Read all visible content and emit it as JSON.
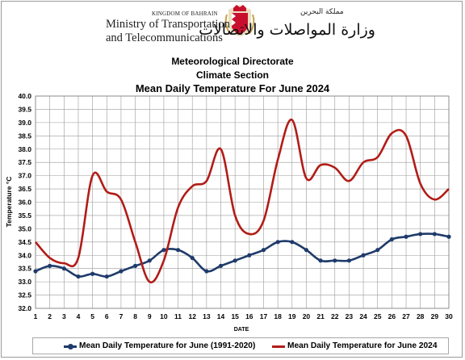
{
  "header": {
    "kingdom": "KINGDOM OF BAHRAIN",
    "ministry_line1": "Ministry of Transportation",
    "ministry_line2": "and Telecommunications",
    "arabic_kingdom": "مملكة البحرين",
    "arabic_ministry": "وزارة المواصلات والاتصالات"
  },
  "titles": {
    "line1": "Meteorological Directorate",
    "line2": "Climate Section",
    "line3": "Mean Daily Temperature For June 2024"
  },
  "colors": {
    "series_normal": "#1f3b6b",
    "series_2024": "#b21c17",
    "grid": "#9a9a9a",
    "logo_red": "#c8102e",
    "logo_gold": "#c9a24a"
  },
  "chart_data": {
    "type": "line",
    "title": "Mean Daily Temperature For June 2024",
    "xlabel": "DATE",
    "ylabel": "Temperature °C",
    "x": [
      1,
      2,
      3,
      4,
      5,
      6,
      7,
      8,
      9,
      10,
      11,
      12,
      13,
      14,
      15,
      16,
      17,
      18,
      19,
      20,
      21,
      22,
      23,
      24,
      25,
      26,
      27,
      28,
      29,
      30
    ],
    "ylim": [
      32.0,
      40.0
    ],
    "yticks": [
      "32.0",
      "32.5",
      "33.0",
      "33.5",
      "34.0",
      "34.5",
      "35.0",
      "35.5",
      "36.0",
      "36.5",
      "37.0",
      "37.5",
      "38.0",
      "38.5",
      "39.0",
      "39.5",
      "40.0"
    ],
    "grid": true,
    "legend_position": "bottom",
    "series": [
      {
        "name": "Mean Daily Temperature for June (1991-2020)",
        "values": [
          33.4,
          33.6,
          33.5,
          33.2,
          33.3,
          33.2,
          33.4,
          33.6,
          33.8,
          34.2,
          34.2,
          33.9,
          33.4,
          33.6,
          33.8,
          34.0,
          34.2,
          34.5,
          34.5,
          34.2,
          33.8,
          33.8,
          33.8,
          34.0,
          34.2,
          34.6,
          34.7,
          34.8,
          34.8,
          34.7
        ]
      },
      {
        "name": "Mean Daily Temperature for June 2024",
        "values": [
          34.5,
          33.9,
          33.7,
          33.9,
          37.0,
          36.4,
          36.1,
          34.5,
          33.0,
          33.8,
          35.8,
          36.6,
          36.8,
          38.0,
          35.5,
          34.8,
          35.3,
          37.6,
          39.1,
          36.9,
          37.4,
          37.3,
          36.8,
          37.5,
          37.7,
          38.6,
          38.5,
          36.7,
          36.1,
          36.5
        ]
      }
    ]
  }
}
